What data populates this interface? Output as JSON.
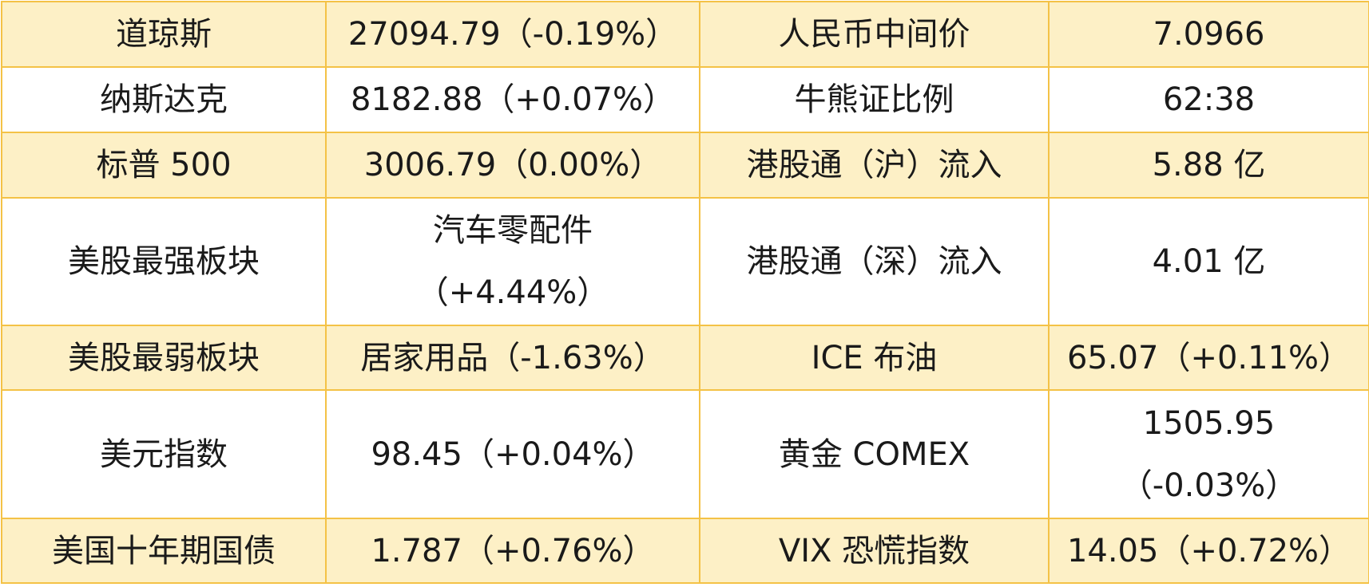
{
  "table": {
    "rows": [
      [
        [
          "道琼斯"
        ],
        [
          "27094.79（-0.19%）"
        ],
        [
          "人民币中间价"
        ],
        [
          "7.0966"
        ]
      ],
      [
        [
          "纳斯达克"
        ],
        [
          "8182.88（+0.07%）"
        ],
        [
          "牛熊证比例"
        ],
        [
          "62:38"
        ]
      ],
      [
        [
          "标普 500"
        ],
        [
          "3006.79（0.00%）"
        ],
        [
          "港股通（沪）流入"
        ],
        [
          "5.88 亿"
        ]
      ],
      [
        [
          "美股最强板块"
        ],
        [
          "汽车零配件",
          "（+4.44%）"
        ],
        [
          "港股通（深）流入"
        ],
        [
          "4.01 亿"
        ]
      ],
      [
        [
          "美股最弱板块"
        ],
        [
          "居家用品（-1.63%）"
        ],
        [
          "ICE 布油"
        ],
        [
          "65.07（+0.11%）"
        ]
      ],
      [
        [
          "美元指数"
        ],
        [
          "98.45（+0.04%）"
        ],
        [
          "黄金 COMEX"
        ],
        [
          "1505.95",
          "（-0.03%）"
        ]
      ],
      [
        [
          "美国十年期国债"
        ],
        [
          "1.787（+0.76%）"
        ],
        [
          "VIX 恐慌指数"
        ],
        [
          "14.05（+0.72%）"
        ]
      ]
    ]
  }
}
